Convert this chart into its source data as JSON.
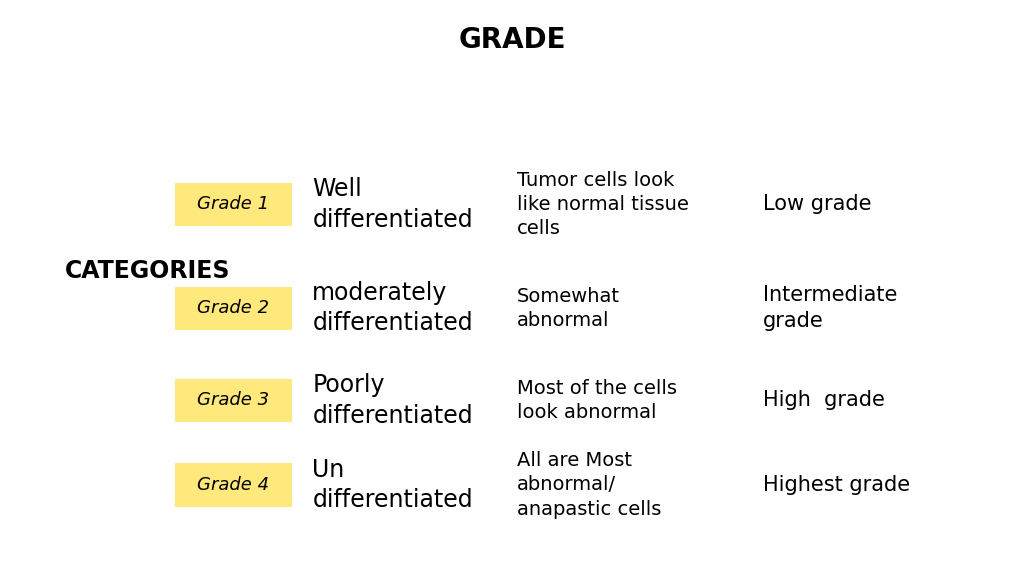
{
  "title": "GRADE",
  "title_fontsize": 20,
  "title_weight": "bold",
  "background_color": "#ffffff",
  "categories_label": "CATEGORIES",
  "categories_fontsize": 17,
  "categories_weight": "bold",
  "grades": [
    {
      "label": "Grade 1",
      "box_color": "#FFE87C",
      "name": "Well\ndifferentiated",
      "description": "Tumor cells look\nlike normal tissue\ncells",
      "grade_level": "Low grade"
    },
    {
      "label": "Grade 2",
      "box_color": "#FFE87C",
      "name": "moderately\ndifferentiated",
      "description": "Somewhat\nabnormal",
      "grade_level": "Intermediate\ngrade"
    },
    {
      "label": "Grade 3",
      "box_color": "#FFE87C",
      "name": "Poorly\ndifferentiated",
      "description": "Most of the cells\nlook abnormal",
      "grade_level": "High  grade"
    },
    {
      "label": "Grade 4",
      "box_color": "#FFE87C",
      "name": "Un\ndifferentiated",
      "description": "All are Most\nabnormal/\nanapastic cells",
      "grade_level": "Highest grade"
    }
  ],
  "label_fontsize": 13,
  "name_fontsize": 17,
  "description_fontsize": 14,
  "grade_level_fontsize": 15
}
